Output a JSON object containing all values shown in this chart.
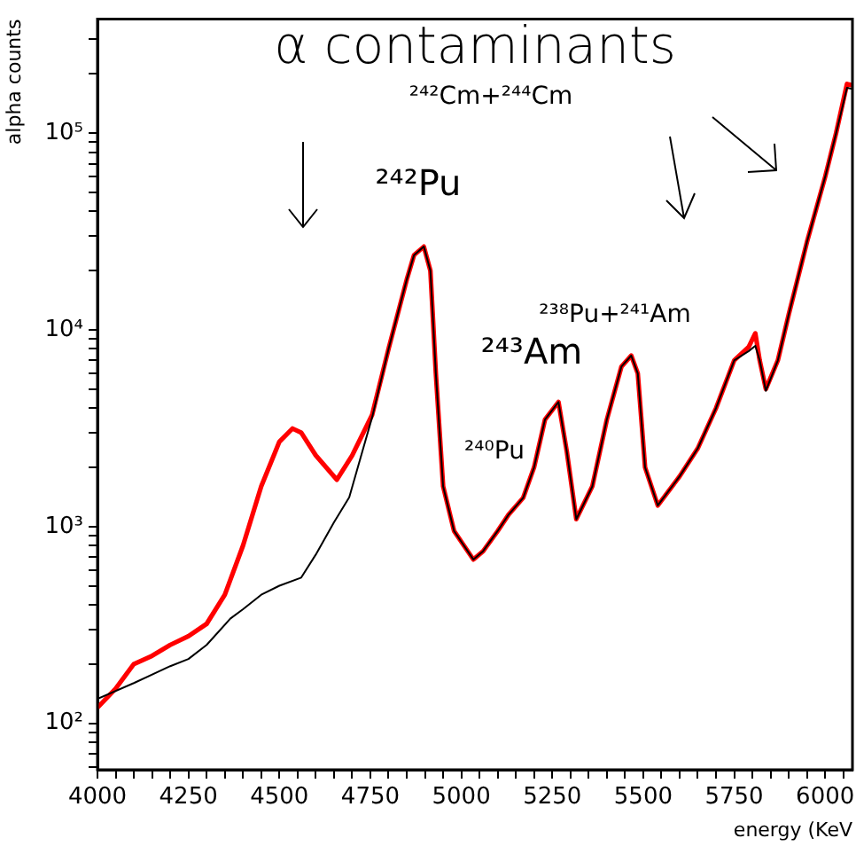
{
  "chart_data": {
    "type": "line",
    "title": "α contaminants",
    "xlabel": "energy (KeV",
    "ylabel": "alpha counts",
    "log": "y",
    "grid": false,
    "legend": false,
    "marker": "none",
    "line_style": "solid",
    "xlim": [
      4000,
      6075
    ],
    "ylim": [
      58,
      380000
    ],
    "xticks": [
      4000,
      {
        "value": 4050,
        "label": null
      },
      {
        "value": 4100,
        "label": null
      },
      {
        "value": 4150,
        "label": null
      },
      {
        "value": 4200,
        "label": null
      },
      4250,
      {
        "value": 4300,
        "label": null
      },
      {
        "value": 4350,
        "label": null
      },
      {
        "value": 4400,
        "label": null
      },
      {
        "value": 4450,
        "label": null
      },
      4500,
      {
        "value": 4550,
        "label": null
      },
      {
        "value": 4600,
        "label": null
      },
      {
        "value": 4650,
        "label": null
      },
      {
        "value": 4700,
        "label": null
      },
      4750,
      {
        "value": 4800,
        "label": null
      },
      {
        "value": 4850,
        "label": null
      },
      {
        "value": 4900,
        "label": null
      },
      {
        "value": 4950,
        "label": null
      },
      5000,
      {
        "value": 5050,
        "label": null
      },
      {
        "value": 5100,
        "label": null
      },
      {
        "value": 5150,
        "label": null
      },
      {
        "value": 5200,
        "label": null
      },
      5250,
      {
        "value": 5300,
        "label": null
      },
      {
        "value": 5350,
        "label": null
      },
      {
        "value": 5400,
        "label": null
      },
      {
        "value": 5450,
        "label": null
      },
      5500,
      {
        "value": 5550,
        "label": null
      },
      {
        "value": 5600,
        "label": null
      },
      {
        "value": 5650,
        "label": null
      },
      {
        "value": 5700,
        "label": null
      },
      5750,
      {
        "value": 5800,
        "label": null
      },
      {
        "value": 5850,
        "label": null
      },
      {
        "value": 5900,
        "label": null
      },
      {
        "value": 5950,
        "label": null
      },
      6000,
      {
        "value": 6050,
        "label": null
      }
    ],
    "yticks": [
      {
        "value": 60,
        "label": null
      },
      {
        "value": 70,
        "label": null
      },
      {
        "value": 80,
        "label": null
      },
      {
        "value": 90,
        "label": null
      },
      {
        "value": 100,
        "label": "10²"
      },
      {
        "value": 200,
        "label": null
      },
      {
        "value": 300,
        "label": null
      },
      {
        "value": 400,
        "label": null
      },
      {
        "value": 500,
        "label": null
      },
      {
        "value": 600,
        "label": null
      },
      {
        "value": 700,
        "label": null
      },
      {
        "value": 800,
        "label": null
      },
      {
        "value": 900,
        "label": null
      },
      {
        "value": 1000,
        "label": "10³"
      },
      {
        "value": 2000,
        "label": null
      },
      {
        "value": 3000,
        "label": null
      },
      {
        "value": 4000,
        "label": null
      },
      {
        "value": 5000,
        "label": null
      },
      {
        "value": 6000,
        "label": null
      },
      {
        "value": 7000,
        "label": null
      },
      {
        "value": 8000,
        "label": null
      },
      {
        "value": 9000,
        "label": null
      },
      {
        "value": 10000,
        "label": "10⁴"
      },
      {
        "value": 20000,
        "label": null
      },
      {
        "value": 30000,
        "label": null
      },
      {
        "value": 40000,
        "label": null
      },
      {
        "value": 50000,
        "label": null
      },
      {
        "value": 60000,
        "label": null
      },
      {
        "value": 70000,
        "label": null
      },
      {
        "value": 80000,
        "label": null
      },
      {
        "value": 90000,
        "label": null
      },
      {
        "value": 100000,
        "label": "10⁵"
      },
      {
        "value": 200000,
        "label": null
      },
      {
        "value": 300000,
        "label": null
      }
    ],
    "series": [
      {
        "color": "#ff0000",
        "x": [
          4000,
          4050,
          4100,
          4150,
          4200,
          4250,
          4300,
          4350,
          4400,
          4450,
          4500,
          4536,
          4560,
          4600,
          4658,
          4700,
          4755,
          4800,
          4850,
          4870,
          4897,
          4915,
          4930,
          4950,
          4980,
          5033,
          5060,
          5100,
          5130,
          5170,
          5200,
          5230,
          5267,
          5290,
          5316,
          5360,
          5400,
          5440,
          5467,
          5485,
          5505,
          5540,
          5600,
          5650,
          5700,
          5750,
          5790,
          5808,
          5820,
          5837,
          5870,
          5900,
          5950,
          6000,
          6030,
          6060,
          6075
        ],
        "values": [
          120,
          150,
          200,
          220,
          250,
          277,
          320,
          450,
          800,
          1600,
          2700,
          3150,
          3000,
          2300,
          1730,
          2300,
          3700,
          8000,
          18000,
          24000,
          26500,
          20000,
          6000,
          1600,
          950,
          680,
          750,
          950,
          1150,
          1400,
          2000,
          3500,
          4300,
          2400,
          1090,
          1600,
          3500,
          6500,
          7400,
          6000,
          2000,
          1280,
          1800,
          2500,
          4000,
          7000,
          8200,
          9600,
          7000,
          5000,
          7000,
          12000,
          28000,
          60000,
          100000,
          178000,
          175000
        ]
      },
      {
        "color": "#000000",
        "x": [
          4000,
          4100,
          4200,
          4250,
          4300,
          4365,
          4400,
          4450,
          4500,
          4560,
          4600,
          4650,
          4692,
          4755,
          4800,
          4850,
          4870,
          4897,
          4915,
          4930,
          4950,
          4980,
          5033,
          5060,
          5100,
          5130,
          5170,
          5200,
          5230,
          5267,
          5290,
          5316,
          5360,
          5400,
          5440,
          5467,
          5485,
          5505,
          5540,
          5600,
          5650,
          5700,
          5750,
          5790,
          5808,
          5820,
          5837,
          5870,
          5900,
          5950,
          6000,
          6030,
          6060,
          6075
        ],
        "values": [
          133,
          160,
          195,
          212,
          250,
          340,
          380,
          450,
          500,
          550,
          720,
          1050,
          1410,
          3600,
          8000,
          18000,
          24000,
          26500,
          20000,
          6000,
          1600,
          950,
          680,
          750,
          950,
          1150,
          1400,
          2000,
          3500,
          4300,
          2400,
          1090,
          1600,
          3500,
          6500,
          7400,
          6000,
          2000,
          1280,
          1800,
          2500,
          4000,
          7000,
          7800,
          8300,
          7000,
          4900,
          7000,
          12000,
          28000,
          60000,
          100000,
          170000,
          168000
        ]
      }
    ],
    "annotations": [
      "²⁴²Cm+²⁴⁴Cm",
      "²⁴²Pu",
      "²⁴³Am",
      "²³⁸Pu+²⁴¹Am",
      "²⁴⁰Pu"
    ]
  }
}
